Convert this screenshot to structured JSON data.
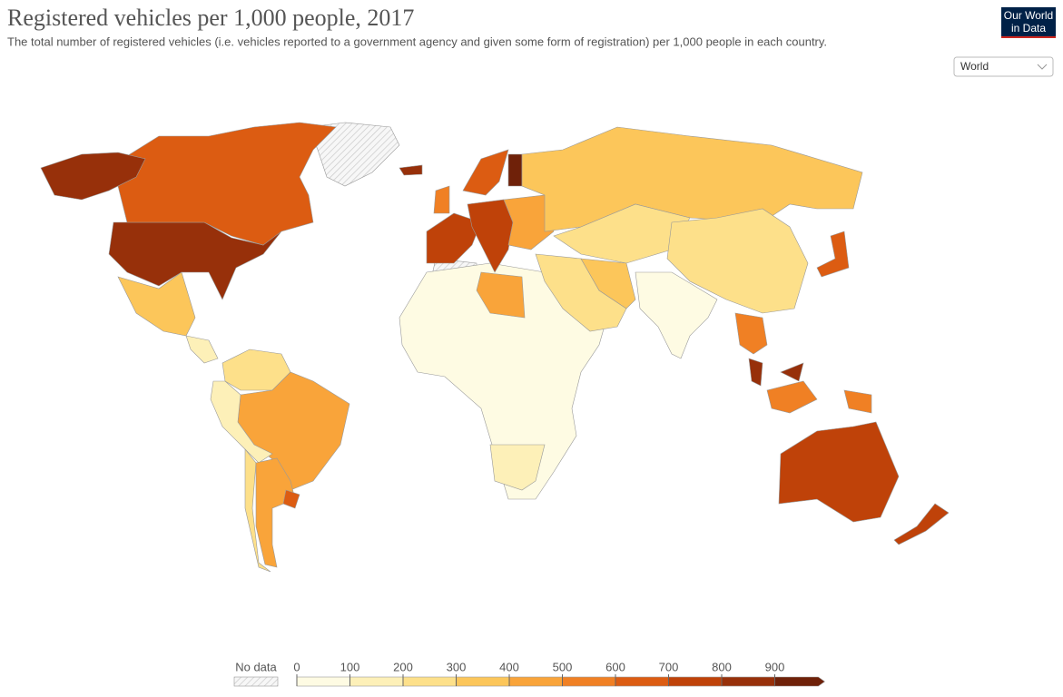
{
  "chart_data": {
    "type": "map",
    "title": "Registered vehicles per 1,000 people, 2017",
    "subtitle": "The total number of registered vehicles (i.e. vehicles reported to a government agency and given some form of registration) per 1,000 people in each country.",
    "logo": [
      "Our World",
      "in Data"
    ],
    "selector": "World",
    "legend": {
      "no_data_label": "No data",
      "ticks": [
        0,
        100,
        200,
        300,
        400,
        500,
        600,
        700,
        800,
        900
      ],
      "colors": [
        "#fefbe3",
        "#fdf0b8",
        "#fde08a",
        "#fcc65a",
        "#f9a43a",
        "#f08024",
        "#dc5c12",
        "#bf4209",
        "#97300a",
        "#6f2109"
      ]
    },
    "values": [
      850,
      650,
      850,
      300,
      150,
      200,
      450,
      100,
      250,
      450,
      650,
      800,
      50,
      450,
      150,
      700,
      750,
      650,
      900,
      550,
      400,
      300,
      200,
      200,
      600,
      200,
      300,
      50,
      550,
      850,
      850,
      500,
      500,
      750,
      750
    ]
  }
}
